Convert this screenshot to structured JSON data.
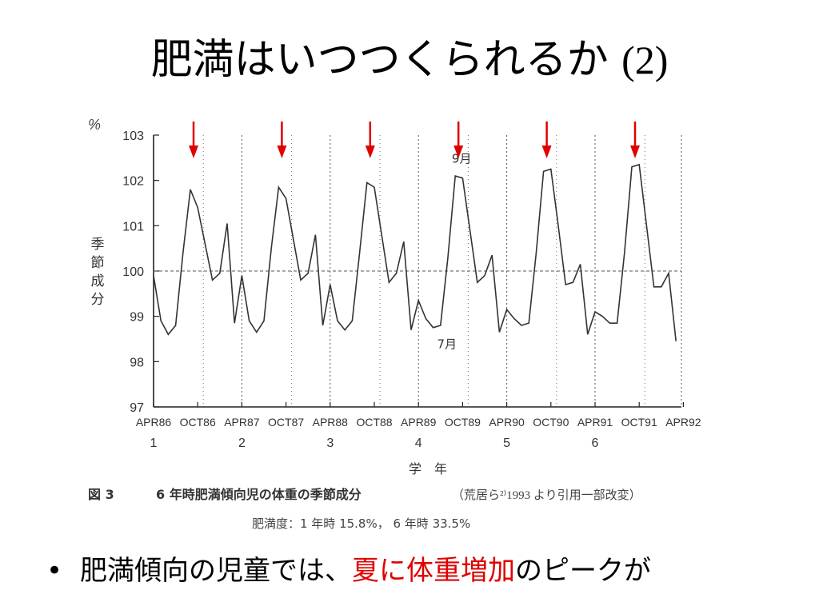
{
  "slide": {
    "title_main": "肥満はいつつくられるか",
    "title_num": "(2)",
    "bullet": {
      "marker": "•",
      "before": "肥満傾向の児童では、",
      "highlight": "夏に体重増加",
      "after": "のピークが",
      "highlight_color": "#e00000"
    }
  },
  "figure": {
    "number": "図 3",
    "caption_title": "6 年時肥満傾向児の体重の季節成分",
    "caption_source": "（荒居ら²⁾1993 より引用一部改変）",
    "caption_note": "肥満度：1 年時 15.8%，  6 年時 33.5%"
  },
  "chart_data": {
    "type": "line",
    "unit_label": "%",
    "ylabel": "季節成分",
    "xlabel": "学　年",
    "ylim": [
      97,
      103
    ],
    "yticks": [
      97,
      98,
      99,
      100,
      101,
      102,
      103
    ],
    "reference_line": 100,
    "xticks": [
      "APR86",
      "OCT86",
      "APR87",
      "OCT87",
      "APR88",
      "OCT88",
      "APR89",
      "OCT89",
      "APR90",
      "OCT90",
      "APR91",
      "OCT91",
      "APR92"
    ],
    "grade_labels": [
      "1",
      "2",
      "3",
      "4",
      "5",
      "6"
    ],
    "annotations": [
      {
        "text": "9月",
        "month_index": 41,
        "value": 102.5
      },
      {
        "text": "7月",
        "month_index": 39,
        "value": 98.4
      }
    ],
    "arrow_color": "#e00000",
    "arrow_month_indices": [
      5,
      17,
      29,
      41,
      53,
      65
    ],
    "series": [
      {
        "values": [
          99.9,
          98.9,
          98.6,
          98.8,
          100.4,
          101.8,
          101.4,
          100.6,
          99.8,
          99.95,
          101.05,
          98.85,
          99.9,
          98.9,
          98.65,
          98.9,
          100.5,
          101.85,
          101.6,
          100.7,
          99.8,
          99.95,
          100.8,
          98.8,
          99.7,
          98.9,
          98.7,
          98.9,
          100.4,
          101.95,
          101.85,
          100.8,
          99.75,
          99.95,
          100.65,
          98.7,
          99.35,
          98.95,
          98.75,
          98.8,
          100.3,
          102.1,
          102.05,
          100.9,
          99.75,
          99.9,
          100.35,
          98.65,
          99.15,
          98.95,
          98.8,
          98.85,
          100.4,
          102.2,
          102.25,
          101.0,
          99.7,
          99.75,
          100.15,
          98.6,
          99.1,
          99.0,
          98.85,
          98.85,
          100.4,
          102.3,
          102.35,
          101.0,
          99.65,
          99.65,
          99.95,
          98.45
        ]
      }
    ]
  }
}
